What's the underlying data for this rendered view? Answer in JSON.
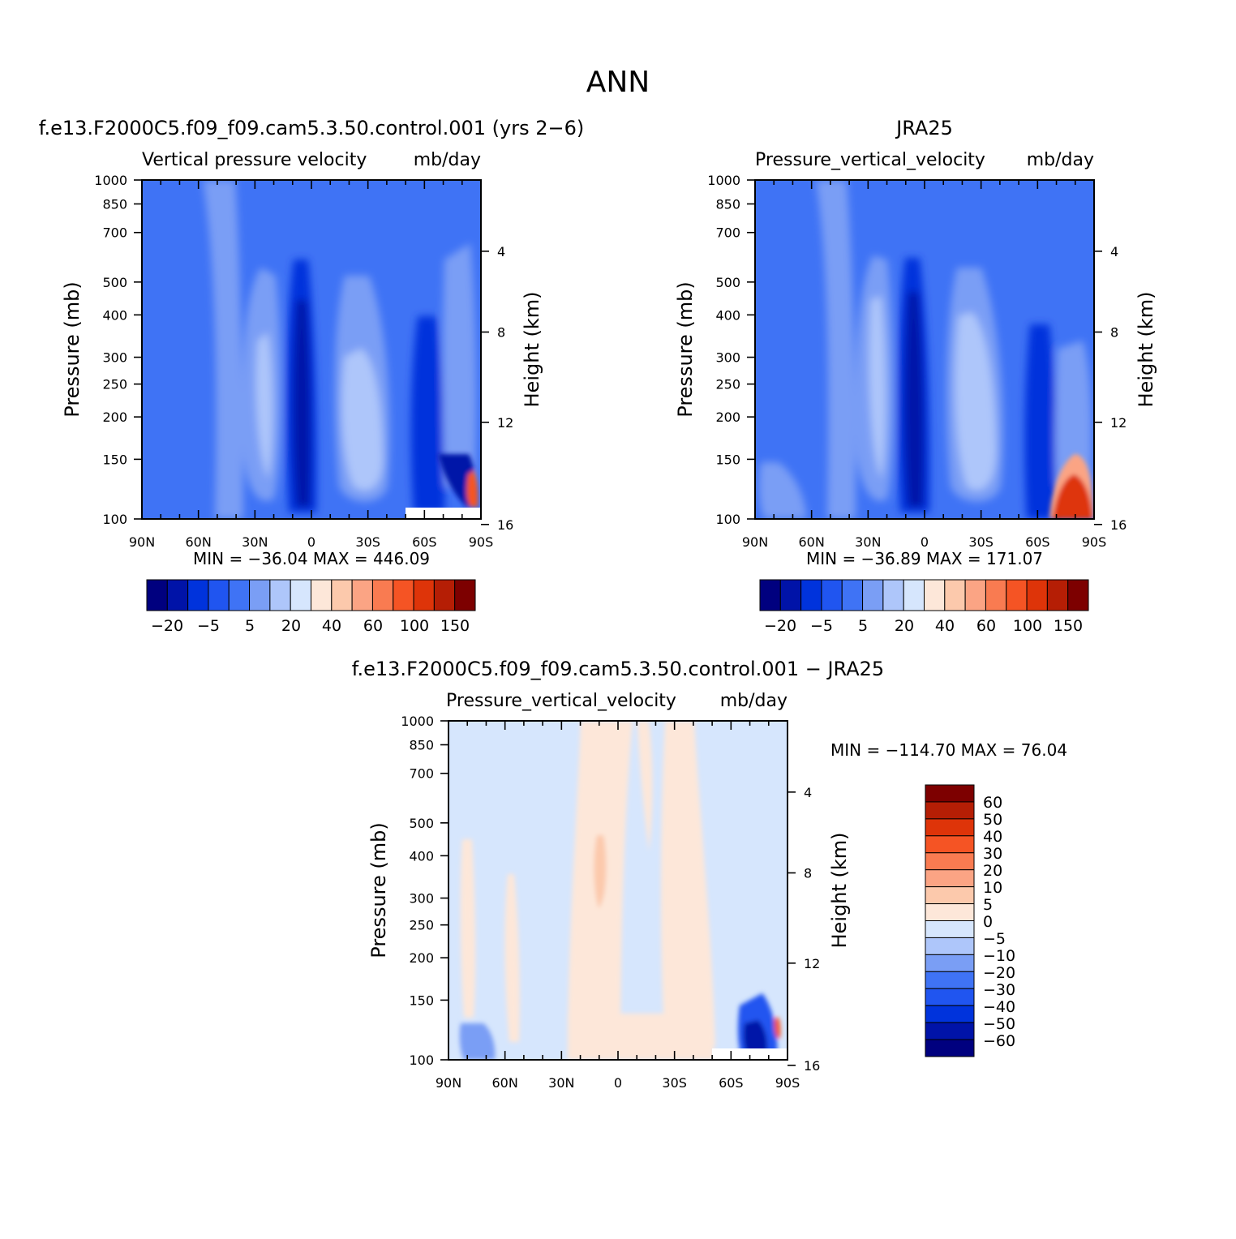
{
  "figure_title": "ANN",
  "colors": {
    "blues": [
      "#00007f",
      "#0013a8",
      "#0033dc",
      "#2055f0",
      "#3f73f5",
      "#7a9ef5",
      "#aec6fa",
      "#d6e6fd"
    ],
    "reds": [
      "#fde7d9",
      "#fcc9ac",
      "#fba484",
      "#f97b51",
      "#f55424",
      "#de3409",
      "#b51e05",
      "#7d0000"
    ],
    "background_blue": "#3f73f5",
    "diff_blue": "#d6e6fd",
    "diff_red": "#fde7d9"
  },
  "chart_data": [
    {
      "type": "heatmap",
      "panel": "model",
      "title": "f.e13.F2000C5.f09_f09.cam5.3.50.control.001 (yrs 2−6)",
      "subtitle_left": "Vertical pressure velocity",
      "subtitle_right": "mb/day",
      "ylabel": "Pressure (mb)",
      "ylabel_right": "Height (km)",
      "x_ticks": [
        "90N",
        "60N",
        "30N",
        "0",
        "30S",
        "60S",
        "90S"
      ],
      "xlim": [
        90,
        -90
      ],
      "y_ticks": [
        "100",
        "150",
        "200",
        "250",
        "300",
        "400",
        "500",
        "700",
        "850",
        "1000"
      ],
      "ylim": [
        1000,
        100
      ],
      "y_scale": "log",
      "height_ticks": [
        "16",
        "12",
        "8",
        "4"
      ],
      "stats": "MIN = −36.04   MAX = 446.09",
      "min": -36.04,
      "max": 446.09,
      "colorbar_labels": [
        "−20",
        "−5",
        "5",
        "20",
        "40",
        "60",
        "100",
        "150"
      ]
    },
    {
      "type": "heatmap",
      "panel": "obs",
      "title": "JRA25",
      "subtitle_left": "Pressure_vertical_velocity",
      "subtitle_right": "mb/day",
      "ylabel": "Pressure (mb)",
      "ylabel_right": "Height (km)",
      "x_ticks": [
        "90N",
        "60N",
        "30N",
        "0",
        "30S",
        "60S",
        "90S"
      ],
      "xlim": [
        90,
        -90
      ],
      "y_ticks": [
        "100",
        "150",
        "200",
        "250",
        "300",
        "400",
        "500",
        "700",
        "850",
        "1000"
      ],
      "ylim": [
        1000,
        100
      ],
      "y_scale": "log",
      "height_ticks": [
        "16",
        "12",
        "8",
        "4"
      ],
      "stats": "MIN = −36.89   MAX = 171.07",
      "min": -36.89,
      "max": 171.07,
      "colorbar_labels": [
        "−20",
        "−5",
        "5",
        "20",
        "40",
        "60",
        "100",
        "150"
      ]
    },
    {
      "type": "heatmap",
      "panel": "diff",
      "title": "f.e13.F2000C5.f09_f09.cam5.3.50.control.001 − JRA25",
      "subtitle_left": "Pressure_vertical_velocity",
      "subtitle_right": "mb/day",
      "ylabel": "Pressure (mb)",
      "ylabel_right": "Height (km)",
      "x_ticks": [
        "90N",
        "60N",
        "30N",
        "0",
        "30S",
        "60S",
        "90S"
      ],
      "xlim": [
        90,
        -90
      ],
      "y_ticks": [
        "100",
        "150",
        "200",
        "250",
        "300",
        "400",
        "500",
        "700",
        "850",
        "1000"
      ],
      "ylim": [
        1000,
        100
      ],
      "y_scale": "log",
      "height_ticks": [
        "16",
        "12",
        "8",
        "4"
      ],
      "stats": "MIN = −114.70   MAX =   76.04",
      "min": -114.7,
      "max": 76.04,
      "colorbar_labels": [
        "60",
        "50",
        "40",
        "30",
        "20",
        "10",
        "5",
        "0",
        "−5",
        "−10",
        "−20",
        "−30",
        "−40",
        "−50",
        "−60"
      ]
    }
  ]
}
